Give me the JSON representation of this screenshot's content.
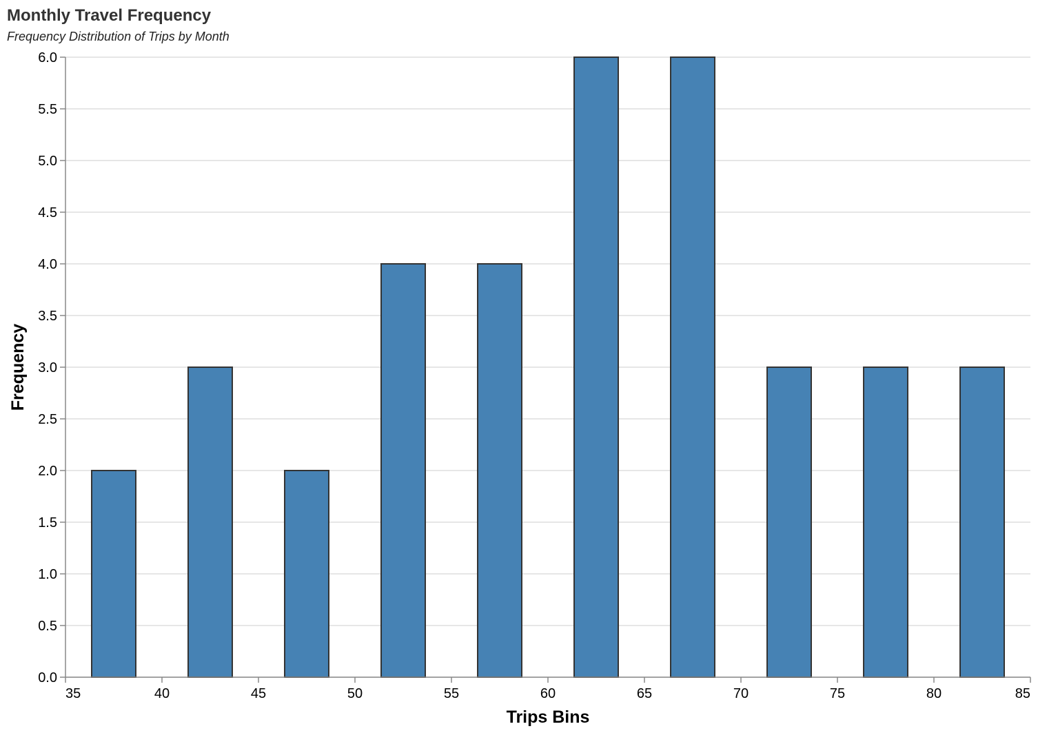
{
  "chart_data": {
    "type": "bar",
    "title": "Monthly Travel Frequency",
    "subtitle": "Frequency Distribution of Trips by Month",
    "xlabel": "Trips Bins",
    "ylabel": "Frequency",
    "xlim": [
      35,
      85
    ],
    "ylim": [
      0,
      6
    ],
    "x_ticks": [
      "35",
      "40",
      "45",
      "50",
      "55",
      "60",
      "65",
      "70",
      "75",
      "80",
      "85"
    ],
    "y_ticks": [
      "0.0",
      "0.5",
      "1.0",
      "1.5",
      "2.0",
      "2.5",
      "3.0",
      "3.5",
      "4.0",
      "4.5",
      "5.0",
      "5.5",
      "6.0"
    ],
    "bins": [
      {
        "bin_start": 35,
        "bin_end": 40,
        "value": 2
      },
      {
        "bin_start": 40,
        "bin_end": 45,
        "value": 3
      },
      {
        "bin_start": 45,
        "bin_end": 50,
        "value": 2
      },
      {
        "bin_start": 50,
        "bin_end": 55,
        "value": 4
      },
      {
        "bin_start": 55,
        "bin_end": 60,
        "value": 4
      },
      {
        "bin_start": 60,
        "bin_end": 65,
        "value": 6
      },
      {
        "bin_start": 65,
        "bin_end": 70,
        "value": 6
      },
      {
        "bin_start": 70,
        "bin_end": 75,
        "value": 3
      },
      {
        "bin_start": 75,
        "bin_end": 80,
        "value": 3
      },
      {
        "bin_start": 80,
        "bin_end": 85,
        "value": 3
      }
    ],
    "grid": true,
    "legend": "none",
    "colors": {
      "bar_fill": "#4682b4",
      "bar_stroke": "#333333"
    }
  }
}
